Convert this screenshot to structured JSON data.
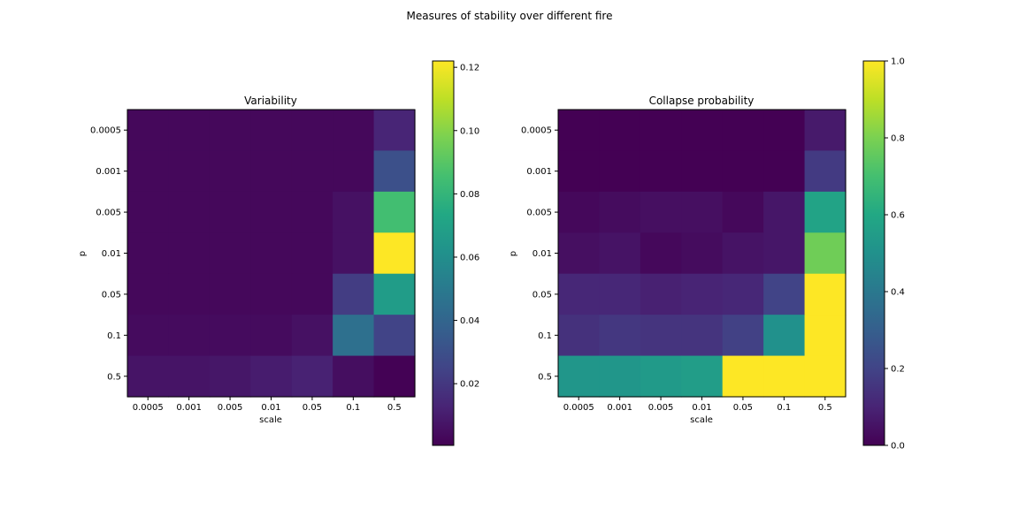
{
  "figure": {
    "suptitle": "Measures of stability over different fire"
  },
  "chart_data": [
    {
      "type": "heatmap",
      "title": "Variability",
      "xlabel": "scale",
      "ylabel": "p",
      "x_categories": [
        "0.0005",
        "0.001",
        "0.005",
        "0.01",
        "0.05",
        "0.1",
        "0.5"
      ],
      "y_categories": [
        "0.0005",
        "0.001",
        "0.005",
        "0.01",
        "0.05",
        "0.1",
        "0.5"
      ],
      "colormap": "viridis",
      "vmin": 0.0005,
      "vmax": 0.122,
      "colorbar_ticks": [
        0.02,
        0.04,
        0.06,
        0.08,
        0.1,
        0.12
      ],
      "colorbar_tick_labels": [
        "0.02",
        "0.04",
        "0.06",
        "0.08",
        "0.10",
        "0.12"
      ],
      "values": [
        [
          0.003,
          0.003,
          0.003,
          0.003,
          0.003,
          0.003,
          0.013
        ],
        [
          0.003,
          0.003,
          0.003,
          0.003,
          0.003,
          0.003,
          0.03
        ],
        [
          0.003,
          0.003,
          0.003,
          0.003,
          0.003,
          0.006,
          0.085
        ],
        [
          0.003,
          0.003,
          0.003,
          0.003,
          0.003,
          0.006,
          0.122
        ],
        [
          0.003,
          0.003,
          0.003,
          0.003,
          0.003,
          0.022,
          0.067
        ],
        [
          0.004,
          0.004,
          0.004,
          0.004,
          0.006,
          0.045,
          0.025
        ],
        [
          0.007,
          0.007,
          0.008,
          0.01,
          0.012,
          0.005,
          0.001
        ]
      ]
    },
    {
      "type": "heatmap",
      "title": "Collapse probability",
      "xlabel": "scale",
      "ylabel": "p",
      "x_categories": [
        "0.0005",
        "0.001",
        "0.005",
        "0.01",
        "0.05",
        "0.1",
        "0.5"
      ],
      "y_categories": [
        "0.0005",
        "0.001",
        "0.005",
        "0.01",
        "0.05",
        "0.1",
        "0.5"
      ],
      "colormap": "viridis",
      "vmin": 0.0,
      "vmax": 1.0,
      "colorbar_ticks": [
        0.0,
        0.2,
        0.4,
        0.6,
        0.8,
        1.0
      ],
      "colorbar_tick_labels": [
        "0.0",
        "0.2",
        "0.4",
        "0.6",
        "0.8",
        "1.0"
      ],
      "values": [
        [
          0.0,
          0.0,
          0.0,
          0.0,
          0.0,
          0.0,
          0.07
        ],
        [
          0.0,
          0.0,
          0.0,
          0.0,
          0.0,
          0.0,
          0.17
        ],
        [
          0.02,
          0.03,
          0.04,
          0.04,
          0.02,
          0.06,
          0.58
        ],
        [
          0.04,
          0.05,
          0.02,
          0.03,
          0.05,
          0.06,
          0.78
        ],
        [
          0.11,
          0.11,
          0.09,
          0.1,
          0.11,
          0.2,
          1.0
        ],
        [
          0.14,
          0.16,
          0.15,
          0.15,
          0.19,
          0.5,
          1.0
        ],
        [
          0.52,
          0.52,
          0.54,
          0.55,
          1.0,
          1.0,
          1.0
        ]
      ]
    }
  ]
}
